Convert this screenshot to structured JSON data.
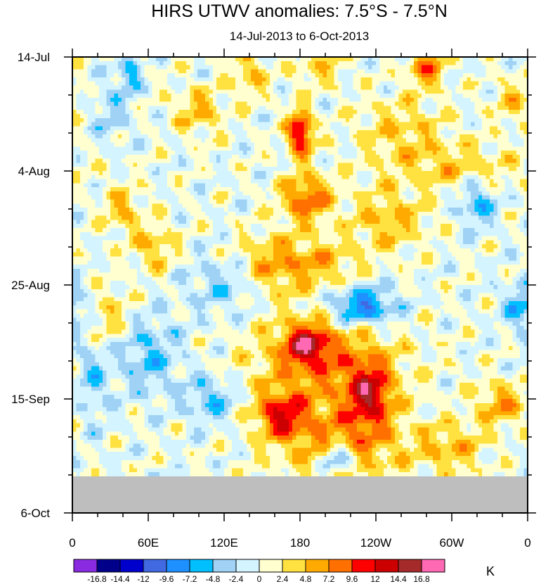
{
  "chart_data": {
    "type": "heatmap",
    "title": "HIRS UTWV anomalies: 7.5°S - 7.5°N",
    "subtitle": "14-Jul-2013 to 6-Oct-2013",
    "xlabel": "",
    "ylabel": "",
    "x_tick_labels": [
      "0",
      "60E",
      "120E",
      "180",
      "120W",
      "60W",
      "0"
    ],
    "x_ticks_deg_east": [
      0,
      60,
      120,
      180,
      240,
      300,
      360
    ],
    "y_tick_labels": [
      "14-Jul",
      "4-Aug",
      "25-Aug",
      "15-Sep",
      "6-Oct"
    ],
    "y_ticks_days_since_start": [
      0,
      21,
      42,
      63,
      84
    ],
    "missing_data_from_day": 77,
    "units": "K",
    "colorbar_labels": [
      "-16.8",
      "-14.4",
      "-12",
      "-9.6",
      "-7.2",
      "-4.8",
      "-2.4",
      "0",
      "2.4",
      "4.8",
      "7.2",
      "9.6",
      "12",
      "14.4",
      "16.8"
    ],
    "colorbar_levels": [
      -16.8,
      -14.4,
      -12,
      -9.6,
      -7.2,
      -4.8,
      -2.4,
      0,
      2.4,
      4.8,
      7.2,
      9.6,
      12,
      14.4,
      16.8
    ],
    "colorbar_colors": [
      "#8a2be2",
      "#00008b",
      "#0000cd",
      "#4169e1",
      "#1e90ff",
      "#00bfff",
      "#a0d2f5",
      "#d4f5ff",
      "#ffffd0",
      "#ffe240",
      "#ffaa00",
      "#ff7000",
      "#ff0000",
      "#cc0000",
      "#a52a2a",
      "#ff69b4"
    ],
    "anomaly_features": [
      {
        "lon": 45,
        "day": 3,
        "value": -6,
        "sx": 6,
        "sy": 2.5
      },
      {
        "lon": 30,
        "day": 10,
        "value": -3,
        "sx": 12,
        "sy": 4
      },
      {
        "lon": 195,
        "day": 2,
        "value": 4,
        "sx": 14,
        "sy": 2.5
      },
      {
        "lon": 280,
        "day": 2,
        "value": 8,
        "sx": 10,
        "sy": 2.5
      },
      {
        "lon": 140,
        "day": 3,
        "value": 5,
        "sx": 10,
        "sy": 3
      },
      {
        "lon": 180,
        "day": 14,
        "value": 13,
        "sx": 7,
        "sy": 3
      },
      {
        "lon": 100,
        "day": 10,
        "value": 5,
        "sx": 14,
        "sy": 3
      },
      {
        "lon": 260,
        "day": 13,
        "value": 4,
        "sx": 25,
        "sy": 4
      },
      {
        "lon": 300,
        "day": 20,
        "value": 4,
        "sx": 40,
        "sy": 3
      },
      {
        "lon": 185,
        "day": 26,
        "value": 9,
        "sx": 14,
        "sy": 3
      },
      {
        "lon": 40,
        "day": 28,
        "value": 5,
        "sx": 10,
        "sy": 3
      },
      {
        "lon": 320,
        "day": 27,
        "value": -6,
        "sx": 10,
        "sy": 3
      },
      {
        "lon": 250,
        "day": 30,
        "value": 5,
        "sx": 22,
        "sy": 4
      },
      {
        "lon": 65,
        "day": 35,
        "value": 5,
        "sx": 12,
        "sy": 3
      },
      {
        "lon": 160,
        "day": 38,
        "value": 6,
        "sx": 22,
        "sy": 4
      },
      {
        "lon": 200,
        "day": 38,
        "value": 4,
        "sx": 20,
        "sy": 3
      },
      {
        "lon": 230,
        "day": 46,
        "value": -10,
        "sx": 18,
        "sy": 2.5
      },
      {
        "lon": 185,
        "day": 53,
        "value": 11,
        "sx": 12,
        "sy": 2.5
      },
      {
        "lon": 200,
        "day": 56,
        "value": 7,
        "sx": 40,
        "sy": 6
      },
      {
        "lon": 235,
        "day": 62,
        "value": 11,
        "sx": 12,
        "sy": 4
      },
      {
        "lon": 165,
        "day": 66,
        "value": 10,
        "sx": 14,
        "sy": 3
      },
      {
        "lon": 215,
        "day": 71,
        "value": 7,
        "sx": 35,
        "sy": 5
      },
      {
        "lon": 340,
        "day": 64,
        "value": 6,
        "sx": 16,
        "sy": 3
      },
      {
        "lon": 300,
        "day": 72,
        "value": 5,
        "sx": 18,
        "sy": 3
      },
      {
        "lon": 60,
        "day": 55,
        "value": -5,
        "sx": 18,
        "sy": 5
      },
      {
        "lon": 110,
        "day": 63,
        "value": -5,
        "sx": 15,
        "sy": 3
      },
      {
        "lon": 210,
        "day": 74,
        "value": -9,
        "sx": 10,
        "sy": 2
      },
      {
        "lon": 355,
        "day": 46,
        "value": -6,
        "sx": 10,
        "sy": 3
      },
      {
        "lon": 30,
        "day": 48,
        "value": 4,
        "sx": 12,
        "sy": 4
      },
      {
        "lon": 350,
        "day": 8,
        "value": 4,
        "sx": 12,
        "sy": 3
      },
      {
        "lon": 120,
        "day": 42,
        "value": -4,
        "sx": 20,
        "sy": 4
      },
      {
        "lon": 15,
        "day": 60,
        "value": -4,
        "sx": 10,
        "sy": 6
      }
    ]
  }
}
